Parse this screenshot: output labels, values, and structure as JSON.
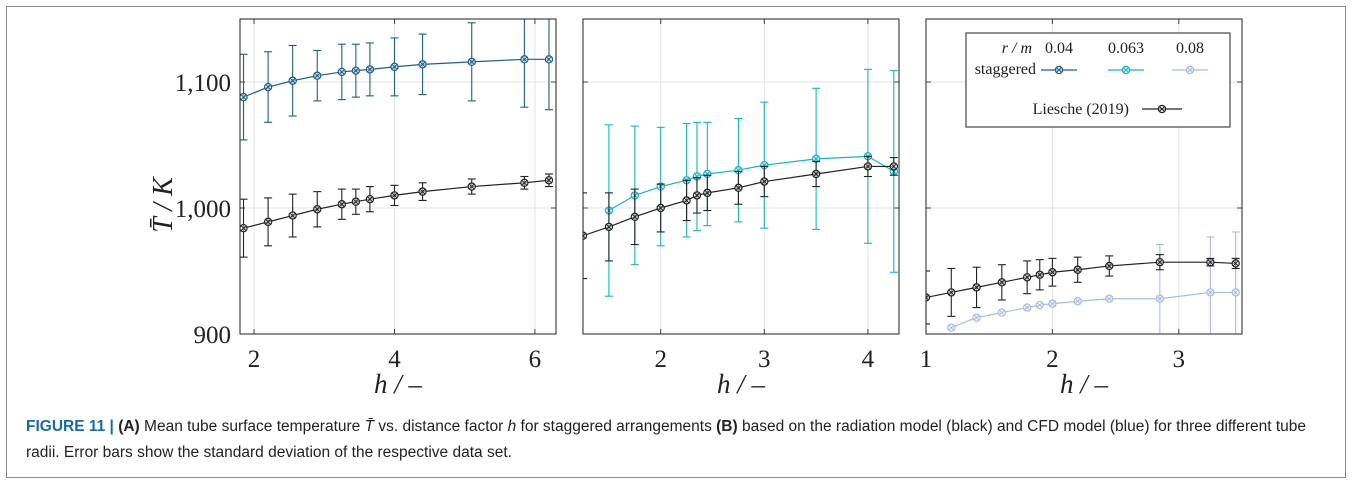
{
  "figure": {
    "y_axis_label": "T̄ / K",
    "caption": {
      "label": "FIGURE 11 | ",
      "part_a": "(A)",
      "text_1": " Mean tube surface temperature ",
      "symbol_T": "T̄",
      "text_2": " vs. distance factor ",
      "symbol_h": "h",
      "text_3": " for staggered arrangements ",
      "part_b": "(B)",
      "text_4": " based on the radiation model (black) and CFD model (blue) for three different tube radii. Error bars show the standard deviation of the respective data set."
    }
  },
  "legend": {
    "header_label": "r / m",
    "row_label": "staggered",
    "radii": [
      "0.04",
      "0.063",
      "0.08"
    ],
    "reference_label": "Liesche (2019)"
  },
  "colors": {
    "r004": "#1f5f86",
    "r0063": "#1ab3c6",
    "r008": "#a9bce0",
    "liesche": "#222222",
    "grid": "#e3e3e3"
  },
  "chart_data": [
    {
      "type": "line",
      "panel": "A",
      "xlabel": "h / –",
      "ylabel": "T̄ / K",
      "xlim": [
        1.8,
        6.3
      ],
      "ylim": [
        900,
        1150
      ],
      "xticks": [
        2,
        4,
        6
      ],
      "yticks": [
        900,
        1000,
        1100
      ],
      "ytick_labels": [
        "900",
        "1,000",
        "1,100"
      ],
      "grid": true,
      "series": [
        {
          "color_key": "r004",
          "x": [
            1.85,
            2.2,
            2.55,
            2.9,
            3.25,
            3.45,
            3.65,
            4.0,
            4.4,
            5.1,
            5.85,
            6.2
          ],
          "y": [
            1088,
            1096,
            1101,
            1105,
            1108,
            1109,
            1110,
            1112,
            1114,
            1116,
            1118,
            1118
          ],
          "err": [
            34,
            28,
            28,
            20,
            22,
            21,
            21,
            23,
            24,
            31,
            38,
            40
          ]
        },
        {
          "color_key": "liesche",
          "x": [
            1.85,
            2.2,
            2.55,
            2.9,
            3.25,
            3.45,
            3.65,
            4.0,
            4.4,
            5.1,
            5.85,
            6.2
          ],
          "y": [
            984,
            989,
            994,
            999,
            1003,
            1005,
            1007,
            1010,
            1013,
            1017,
            1020,
            1022
          ],
          "err": [
            23,
            19,
            17,
            14,
            12,
            10,
            10,
            8,
            7,
            6,
            5,
            5
          ]
        }
      ]
    },
    {
      "type": "line",
      "panel": "B",
      "xlabel": "h / –",
      "xlim": [
        1.25,
        4.3
      ],
      "ylim": [
        900,
        1150
      ],
      "xticks": [
        2,
        3,
        4
      ],
      "yticks": [
        900,
        1000,
        1100
      ],
      "grid": true,
      "series": [
        {
          "color_key": "r0063",
          "x": [
            1.5,
            1.75,
            2.0,
            2.25,
            2.35,
            2.45,
            2.75,
            3.0,
            3.5,
            4.0,
            4.25
          ],
          "y": [
            998,
            1010,
            1017,
            1022,
            1025,
            1027,
            1030,
            1034,
            1039,
            1041,
            1029
          ],
          "err": [
            68,
            55,
            47,
            45,
            43,
            41,
            41,
            50,
            56,
            69,
            80
          ]
        },
        {
          "color_key": "liesche",
          "x": [
            1.25,
            1.5,
            1.75,
            2.0,
            2.25,
            2.35,
            2.45,
            2.75,
            3.0,
            3.5,
            4.0,
            4.25
          ],
          "y": [
            978,
            985,
            993,
            1000,
            1006,
            1010,
            1012,
            1016,
            1021,
            1027,
            1033,
            1033
          ],
          "err": [
            34,
            27,
            22,
            19,
            16,
            14,
            14,
            13,
            12,
            10,
            8,
            7
          ]
        }
      ]
    },
    {
      "type": "line",
      "panel": "C",
      "xlabel": "h / –",
      "xlim": [
        1.0,
        3.5
      ],
      "ylim": [
        900,
        1150
      ],
      "xticks": [
        1,
        2,
        3
      ],
      "yticks": [
        900,
        1000,
        1100
      ],
      "grid": true,
      "series": [
        {
          "color_key": "r008",
          "x": [
            1.2,
            1.4,
            1.6,
            1.8,
            1.9,
            2.0,
            2.2,
            2.45,
            2.85,
            3.25,
            3.45
          ],
          "y": [
            905,
            913,
            917,
            921,
            923,
            924,
            926,
            928,
            928,
            933,
            933
          ],
          "err": [
            0,
            0,
            0,
            0,
            0,
            0,
            0,
            0,
            43,
            44,
            48
          ]
        },
        {
          "color_key": "liesche",
          "x": [
            1.0,
            1.2,
            1.4,
            1.6,
            1.8,
            1.9,
            2.0,
            2.2,
            2.45,
            2.85,
            3.25,
            3.45
          ],
          "y": [
            929,
            933,
            937,
            941,
            945,
            947,
            949,
            951,
            954,
            957,
            957,
            956
          ],
          "err": [
            21,
            19,
            16,
            14,
            13,
            12,
            11,
            10,
            8,
            6,
            3,
            4
          ]
        }
      ]
    }
  ]
}
